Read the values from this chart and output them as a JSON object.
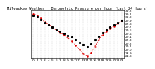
{
  "title": "Milwaukee Weather   Barometric Pressure per Hour (Last 24 Hours)",
  "hours": [
    0,
    1,
    2,
    3,
    4,
    5,
    6,
    7,
    8,
    9,
    10,
    11,
    12,
    13,
    14,
    15,
    16,
    17,
    18,
    19,
    20,
    21,
    22,
    23
  ],
  "pressure_black": [
    30.05,
    30.0,
    29.92,
    29.82,
    29.76,
    29.68,
    29.61,
    29.55,
    29.5,
    29.44,
    29.38,
    29.3,
    29.22,
    29.15,
    29.1,
    29.18,
    29.3,
    29.42,
    29.52,
    29.6,
    29.68,
    29.75,
    29.82,
    29.9
  ],
  "pressure_red": [
    30.1,
    30.05,
    29.96,
    29.85,
    29.78,
    29.68,
    29.6,
    29.52,
    29.45,
    29.36,
    29.26,
    29.14,
    29.0,
    28.88,
    28.8,
    28.9,
    29.1,
    29.3,
    29.46,
    29.56,
    29.64,
    29.72,
    29.8,
    29.88
  ],
  "ylim": [
    28.75,
    30.2
  ],
  "ytick_vals": [
    28.8,
    28.9,
    29.0,
    29.1,
    29.2,
    29.3,
    29.4,
    29.5,
    29.6,
    29.7,
    29.8,
    29.9,
    30.0,
    30.1,
    30.2
  ],
  "title_fontsize": 3.8,
  "tick_fontsize": 3.2,
  "black_color": "#000000",
  "red_color": "#dd0000",
  "bg_color": "#ffffff",
  "grid_color": "#bbbbbb"
}
